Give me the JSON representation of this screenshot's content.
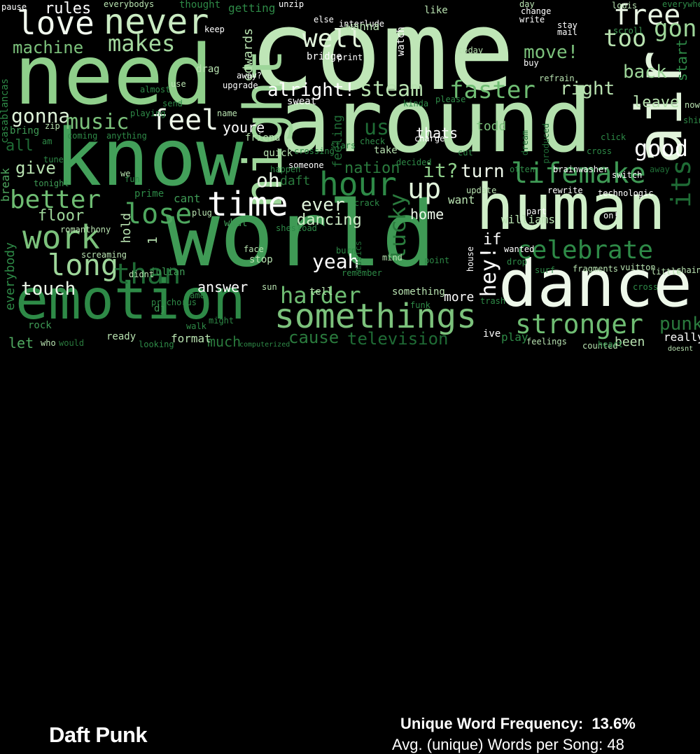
{
  "artist": "Daft Punk",
  "stats": {
    "unique_word_frequency_label": "Unique Word Frequency:",
    "unique_word_frequency_value": "13.6%",
    "avg_words_label": "Avg. (unique) Words per Song:",
    "avg_words_value": "48"
  },
  "words": [
    {
      "t": "come",
      "c": "#bfe6b7"
    },
    {
      "t": "around",
      "c": "#b3e0ad"
    },
    {
      "t": "world",
      "c": "#3f9a55"
    },
    {
      "t": "need",
      "c": "#8fcf8b"
    },
    {
      "t": "know",
      "c": "#43a05a"
    },
    {
      "t": "human",
      "c": "#cfeec8"
    },
    {
      "t": "emotion",
      "c": "#2e8a47"
    },
    {
      "t": "dance",
      "c": "#eef8ea"
    },
    {
      "t": "air",
      "c": "#e2f4dc"
    },
    {
      "t": "night",
      "c": "#9ed69a"
    },
    {
      "t": "never",
      "c": "#c9ebc2"
    },
    {
      "t": "love",
      "c": "#f2faef"
    },
    {
      "t": "makes",
      "c": "#a4d99f"
    },
    {
      "t": "machine",
      "c": "#7cc27c"
    },
    {
      "t": "rules",
      "c": "#ffffff"
    },
    {
      "t": "free",
      "c": "#e9f6e4"
    },
    {
      "t": "gon",
      "c": "#9ed69a"
    },
    {
      "t": "too",
      "c": "#b8e2b0"
    },
    {
      "t": "well",
      "c": "#e2f4dc"
    },
    {
      "t": "move!",
      "c": "#7cc27c"
    },
    {
      "t": "back",
      "c": "#9ed69a"
    },
    {
      "t": "alright!",
      "c": "#ffffff"
    },
    {
      "t": "steam",
      "c": "#b8e2b0"
    },
    {
      "t": "faster",
      "c": "#6fbd73"
    },
    {
      "t": "right",
      "c": "#b8e2b0"
    },
    {
      "t": "leave",
      "c": "#b8e2b0"
    },
    {
      "t": "gonna",
      "c": "#dff3da"
    },
    {
      "t": "music",
      "c": "#7cc27c"
    },
    {
      "t": "feel",
      "c": "#eef8ea"
    },
    {
      "t": "youre",
      "c": "#ffffff"
    },
    {
      "t": "us",
      "c": "#1f6b35"
    },
    {
      "t": "thats",
      "c": "#ffffff"
    },
    {
      "t": "todd",
      "c": "#7cc27c"
    },
    {
      "t": "good",
      "c": "#ffffff"
    },
    {
      "t": "all",
      "c": "#1f6b35"
    },
    {
      "t": "give",
      "c": "#b8e2b0"
    },
    {
      "t": "nation",
      "c": "#2a7a3d"
    },
    {
      "t": "it?",
      "c": "#8fcf8b"
    },
    {
      "t": "turn",
      "c": "#eef8ea"
    },
    {
      "t": "lifemake",
      "c": "#3f9a55"
    },
    {
      "t": "its",
      "c": "#1f6b35"
    },
    {
      "t": "oh",
      "c": "#eef8ea"
    },
    {
      "t": "hour",
      "c": "#2e8a47"
    },
    {
      "t": "up",
      "c": "#e2f4dc"
    },
    {
      "t": "better",
      "c": "#6fbd73"
    },
    {
      "t": "time",
      "c": "#ffffff"
    },
    {
      "t": "lose",
      "c": "#4fa85f"
    },
    {
      "t": "ever",
      "c": "#dff3da"
    },
    {
      "t": "floor",
      "c": "#9ed69a"
    },
    {
      "t": "dancing",
      "c": "#cfeec8"
    },
    {
      "t": "home",
      "c": "#eef8ea"
    },
    {
      "t": "lucky",
      "c": "#2a7a3d"
    },
    {
      "t": "work",
      "c": "#7cc27c"
    },
    {
      "t": "long",
      "c": "#9ed69a"
    },
    {
      "t": "than",
      "c": "#1f6b35"
    },
    {
      "t": "yeah",
      "c": "#ffffff"
    },
    {
      "t": "hey!",
      "c": "#ffffff"
    },
    {
      "t": "if",
      "c": "#ffffff"
    },
    {
      "t": "celebrate",
      "c": "#2e8a47"
    },
    {
      "t": "touch",
      "c": "#eef8ea"
    },
    {
      "t": "answer",
      "c": "#ffffff"
    },
    {
      "t": "harder",
      "c": "#6fbd73"
    },
    {
      "t": "somethings",
      "c": "#7cc27c"
    },
    {
      "t": "stronger",
      "c": "#6fbd73"
    },
    {
      "t": "more",
      "c": "#ffffff"
    },
    {
      "t": "cause",
      "c": "#2a7a3d"
    },
    {
      "t": "television",
      "c": "#1f6b35"
    },
    {
      "t": "punk",
      "c": "#2a7a3d"
    },
    {
      "t": "been",
      "c": "#b8e2b0"
    },
    {
      "t": "really",
      "c": "#ffffff"
    },
    {
      "t": "let",
      "c": "#4fa85f"
    },
    {
      "t": "much",
      "c": "#2a7a3d"
    },
    {
      "t": "format",
      "c": "#b8e2b0"
    },
    {
      "t": "ready",
      "c": "#b8e2b0"
    },
    {
      "t": "ive",
      "c": "#ffffff"
    },
    {
      "t": "play",
      "c": "#2e8a47"
    },
    {
      "t": "feelings",
      "c": "#b8e2b0"
    },
    {
      "t": "everybody",
      "c": "#2e8a47"
    },
    {
      "t": "break",
      "c": "#4fa85f"
    },
    {
      "t": "tonight",
      "c": "#3f9a55"
    },
    {
      "t": "bring",
      "c": "#3f9a55"
    },
    {
      "t": "hold",
      "c": "#b8e2b0"
    },
    {
      "t": "cant",
      "c": "#3f9a55"
    },
    {
      "t": "prime",
      "c": "#2e8a47"
    },
    {
      "t": "what",
      "c": "#3f9a55"
    },
    {
      "t": "stop",
      "c": "#b8e2b0"
    },
    {
      "t": "julian",
      "c": "#3f9a55"
    },
    {
      "t": "dj",
      "c": "#3f9a55"
    },
    {
      "t": "something",
      "c": "#b8e2b0"
    },
    {
      "t": "tell",
      "c": "#b8e2b0"
    },
    {
      "t": "williams",
      "c": "#b8e2b0"
    },
    {
      "t": "want",
      "c": "#b8e2b0"
    },
    {
      "t": "part",
      "c": "#ffffff"
    },
    {
      "t": "wanted",
      "c": "#ffffff"
    },
    {
      "t": "getting",
      "c": "#2e8a47"
    },
    {
      "t": "thought",
      "c": "#2e8a47"
    },
    {
      "t": "everybodys",
      "c": "#b8e2b0"
    },
    {
      "t": "edwards",
      "c": "#b8e2b0"
    },
    {
      "t": "bridge",
      "c": "#ffffff"
    },
    {
      "t": "watch",
      "c": "#ffffff"
    },
    {
      "t": "quick",
      "c": "#b8e2b0"
    },
    {
      "t": "friend",
      "c": "#b8e2b0"
    },
    {
      "t": "feeling",
      "c": "#1f6b35"
    },
    {
      "t": "take",
      "c": "#b8e2b0"
    },
    {
      "t": "sweat",
      "c": "#ffffff"
    },
    {
      "t": "coming",
      "c": "#2e8a47"
    },
    {
      "t": "stay",
      "c": "#ffffff"
    },
    {
      "t": "mail",
      "c": "#ffffff"
    },
    {
      "t": "like",
      "c": "#b8e2b0"
    },
    {
      "t": "keep",
      "c": "#ffffff"
    },
    {
      "t": "drag",
      "c": "#b8e2b0"
    },
    {
      "t": "upgrade",
      "c": "#ffffff"
    },
    {
      "t": "use",
      "c": "#b8e2b0"
    },
    {
      "t": "name",
      "c": "#b8e2b0"
    },
    {
      "t": "someone",
      "c": "#ffffff"
    },
    {
      "t": "charge",
      "c": "#ffffff"
    },
    {
      "t": "dream",
      "c": "#1f6b35"
    },
    {
      "t": "produced",
      "c": "#1f6b35"
    },
    {
      "t": "brainwasher",
      "c": "#ffffff"
    },
    {
      "t": "rewrite",
      "c": "#ffffff"
    },
    {
      "t": "technologic",
      "c": "#ffffff"
    },
    {
      "t": "switch",
      "c": "#ffffff"
    },
    {
      "t": "away",
      "c": "#1f6b35"
    },
    {
      "t": "on!",
      "c": "#ffffff"
    },
    {
      "t": "screaming",
      "c": "#b8e2b0"
    },
    {
      "t": "didnt",
      "c": "#b8e2b0"
    },
    {
      "t": "house",
      "c": "#ffffff"
    },
    {
      "t": "musics",
      "c": "#1f6b35"
    },
    {
      "t": "vuitton",
      "c": "#b8e2b0"
    },
    {
      "t": "fragments",
      "c": "#b8e2b0"
    },
    {
      "t": "chained",
      "c": "#b8e2b0"
    },
    {
      "t": "little",
      "c": "#b8e2b0"
    },
    {
      "t": "cross",
      "c": "#2e8a47"
    },
    {
      "t": "shine",
      "c": "#2e8a47"
    },
    {
      "t": "now!",
      "c": "#b8e2b0"
    },
    {
      "t": "counted",
      "c": "#b8e2b0"
    },
    {
      "t": "doesnt",
      "c": "#b8e2b0"
    },
    {
      "t": "would",
      "c": "#2a7a3d"
    },
    {
      "t": "who",
      "c": "#b8e2b0"
    },
    {
      "t": "looking",
      "c": "#2e8a47"
    },
    {
      "t": "rock",
      "c": "#3f9a55"
    },
    {
      "t": "pause",
      "c": "#ffffff"
    },
    {
      "t": "unzip",
      "c": "#ffffff"
    },
    {
      "t": "else",
      "c": "#ffffff"
    },
    {
      "t": "interlude",
      "c": "#ffffff"
    },
    {
      "t": "wanna",
      "c": "#b8e2b0"
    },
    {
      "t": "day",
      "c": "#b8e2b0"
    },
    {
      "t": "change",
      "c": "#ffffff"
    },
    {
      "t": "write",
      "c": "#ffffff"
    },
    {
      "t": "louis",
      "c": "#b8e2b0"
    },
    {
      "t": "everywhere",
      "c": "#2e8a47"
    },
    {
      "t": "scroll",
      "c": "#3f9a55"
    },
    {
      "t": "start",
      "c": "#2e8a47"
    },
    {
      "t": "buy",
      "c": "#ffffff"
    },
    {
      "t": "refrain",
      "c": "#b8e2b0"
    },
    {
      "t": "today",
      "c": "#b8e2b0"
    },
    {
      "t": "print",
      "c": "#ffffff"
    },
    {
      "t": "away?",
      "c": "#ffffff"
    },
    {
      "t": "please",
      "c": "#2e8a47"
    },
    {
      "t": "kinda",
      "c": "#2e8a47"
    },
    {
      "t": "update",
      "c": "#b8e2b0"
    },
    {
      "t": "remember",
      "c": "#2e8a47"
    },
    {
      "t": "burn",
      "c": "#2e8a47"
    },
    {
      "t": "face",
      "c": "#b8e2b0"
    },
    {
      "t": "mind",
      "c": "#b8e2b0"
    },
    {
      "t": "surf",
      "c": "#2e8a47"
    },
    {
      "t": "drop",
      "c": "#2e8a47"
    },
    {
      "t": "daft",
      "c": "#2a7a3d"
    },
    {
      "t": "crack",
      "c": "#2e8a47"
    },
    {
      "t": "shes",
      "c": "#2e8a47"
    },
    {
      "t": "load",
      "c": "#2e8a47"
    },
    {
      "t": "plug",
      "c": "#b8e2b0"
    },
    {
      "t": "game",
      "c": "#2e8a47"
    },
    {
      "t": "sun",
      "c": "#b8e2b0"
    },
    {
      "t": "funk",
      "c": "#2e8a47"
    },
    {
      "t": "trash",
      "c": "#2e8a47"
    },
    {
      "t": "point",
      "c": "#2e8a47"
    },
    {
      "t": "romanthony",
      "c": "#b8e2b0"
    },
    {
      "t": "casablancas",
      "c": "#2e8a47"
    },
    {
      "t": "zip",
      "c": "#b8e2b0"
    },
    {
      "t": "anything",
      "c": "#2e8a47"
    },
    {
      "t": "playing",
      "c": "#2e8a47"
    },
    {
      "t": "send",
      "c": "#2e8a47"
    },
    {
      "t": "almost",
      "c": "#2e8a47"
    },
    {
      "t": "crossing",
      "c": "#2e8a47"
    },
    {
      "t": "prechorus",
      "c": "#2e8a47"
    },
    {
      "t": "walk",
      "c": "#2e8a47"
    },
    {
      "t": "might",
      "c": "#2e8a47"
    },
    {
      "t": "computerized",
      "c": "#2e8a47"
    },
    {
      "t": "fun",
      "c": "#2e8a47"
    },
    {
      "t": "am",
      "c": "#2e8a47"
    },
    {
      "t": "we",
      "c": "#b8e2b0"
    },
    {
      "t": "1",
      "c": "#b8e2b0"
    },
    {
      "t": "tune",
      "c": "#2e8a47"
    },
    {
      "t": "check",
      "c": "#2e8a47"
    },
    {
      "t": "decided",
      "c": "#2e8a47"
    },
    {
      "t": "happen",
      "c": "#2e8a47"
    },
    {
      "t": "cut",
      "c": "#2e8a47"
    },
    {
      "t": "click",
      "c": "#2e8a47"
    },
    {
      "t": "cross",
      "c": "#2e8a47"
    },
    {
      "t": "stars",
      "c": "#2e8a47"
    },
    {
      "t": "otten",
      "c": "#2e8a47"
    },
    {
      "t": "heart",
      "c": "#2e8a47"
    }
  ]
}
